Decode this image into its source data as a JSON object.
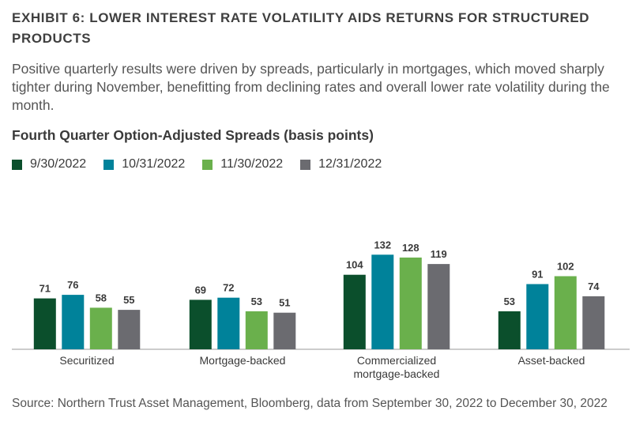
{
  "exhibit_title": "EXHIBIT 6: LOWER INTEREST RATE VOLATILITY AIDS RETURNS FOR STRUCTURED PRODUCTS",
  "subtitle": "Positive quarterly results were driven by spreads, particularly in mortgages, which moved sharply tighter during November, benefitting from declining rates and overall lower rate volatility during the month.",
  "source": "Source: Northern Trust Asset Management, Bloomberg, data from September 30, 2022 to December 30, 2022",
  "chart_data": {
    "type": "bar",
    "title": "Fourth Quarter Option-Adjusted Spreads  (basis points)",
    "xlabel": "",
    "ylabel": "",
    "ylim": [
      0,
      145
    ],
    "grid": false,
    "legend_position": "top-left",
    "categories": [
      "Securitized",
      "Mortgage-backed",
      "Commercialized mortgage-backed",
      "Asset-backed"
    ],
    "series": [
      {
        "name": "9/30/2022",
        "color": "#0b4f2c",
        "values": [
          71,
          69,
          104,
          53
        ]
      },
      {
        "name": "10/31/2022",
        "color": "#00829a",
        "values": [
          76,
          72,
          132,
          91
        ]
      },
      {
        "name": "11/30/2022",
        "color": "#6ab04c",
        "values": [
          58,
          53,
          128,
          102
        ]
      },
      {
        "name": "12/31/2022",
        "color": "#6b6b70",
        "values": [
          55,
          51,
          119,
          74
        ]
      }
    ]
  }
}
